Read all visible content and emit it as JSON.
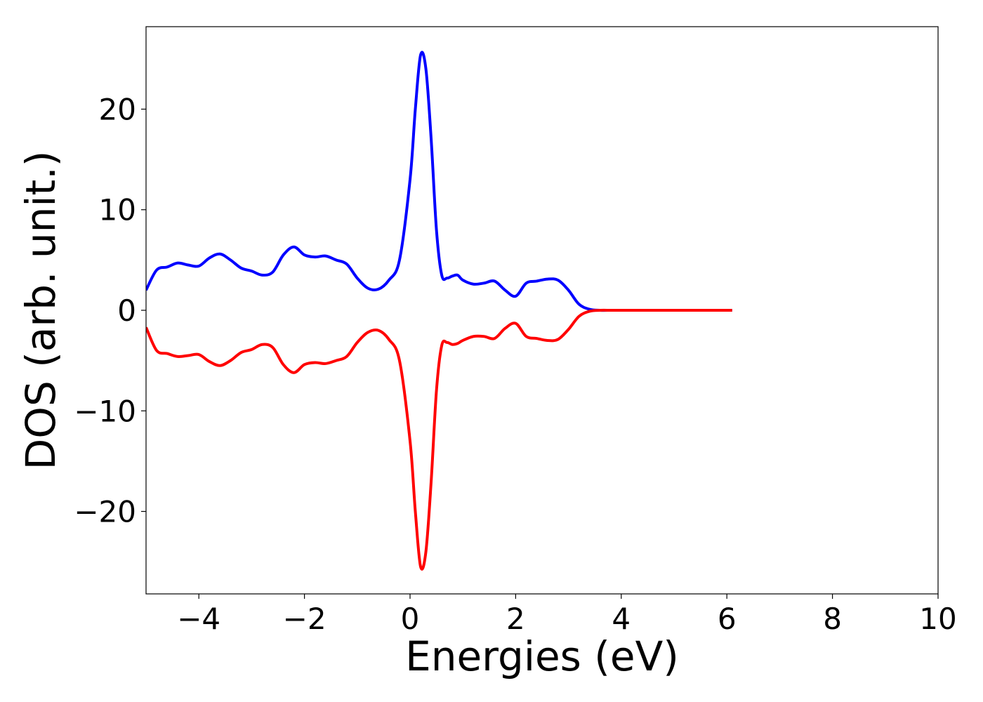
{
  "chart_data": {
    "type": "line",
    "title": "",
    "xlabel": "Energies (eV)",
    "ylabel": "DOS (arb. unit.)",
    "xlim": [
      -5,
      10
    ],
    "ylim": [
      -28.2,
      28.2
    ],
    "grid": false,
    "legend": "none",
    "xticks": [
      -4,
      -2,
      0,
      2,
      4,
      6,
      8,
      10
    ],
    "xtick_labels": [
      "−4",
      "−2",
      "0",
      "2",
      "4",
      "6",
      "8",
      "10"
    ],
    "yticks": [
      -20,
      -10,
      0,
      10,
      20
    ],
    "ytick_labels": [
      "−20",
      "−10",
      "0",
      "10",
      "20"
    ],
    "series": [
      {
        "color": "#0000ff",
        "x": [
          -5.0,
          -4.8,
          -4.6,
          -4.4,
          -4.2,
          -4.0,
          -3.8,
          -3.6,
          -3.4,
          -3.2,
          -3.0,
          -2.8,
          -2.6,
          -2.4,
          -2.2,
          -2.0,
          -1.8,
          -1.6,
          -1.4,
          -1.2,
          -1.0,
          -0.8,
          -0.6,
          -0.4,
          -0.2,
          0.0,
          0.1,
          0.2,
          0.3,
          0.4,
          0.5,
          0.6,
          0.7,
          0.8,
          0.9,
          1.0,
          1.2,
          1.4,
          1.6,
          1.8,
          2.0,
          2.2,
          2.4,
          2.6,
          2.8,
          3.0,
          3.2,
          3.4,
          3.6,
          3.8,
          4.0,
          4.2,
          4.4,
          5.0,
          5.5,
          6.1
        ],
        "y": [
          2.0,
          4.0,
          4.3,
          4.7,
          4.5,
          4.4,
          5.2,
          5.6,
          5.0,
          4.2,
          3.9,
          3.5,
          3.8,
          5.5,
          6.3,
          5.5,
          5.3,
          5.4,
          5.0,
          4.6,
          3.2,
          2.2,
          2.1,
          3.0,
          5.0,
          13.0,
          20.0,
          25.4,
          24.0,
          17.0,
          8.0,
          3.5,
          3.2,
          3.4,
          3.5,
          3.0,
          2.6,
          2.7,
          2.9,
          2.0,
          1.4,
          2.7,
          2.9,
          3.1,
          3.0,
          2.0,
          0.6,
          0.1,
          0.0,
          0.0,
          0.0,
          0.0,
          0.0,
          0.0,
          0.0,
          0.0
        ]
      },
      {
        "color": "#ff0000",
        "x": [
          -5.0,
          -4.8,
          -4.6,
          -4.4,
          -4.2,
          -4.0,
          -3.8,
          -3.6,
          -3.4,
          -3.2,
          -3.0,
          -2.8,
          -2.6,
          -2.4,
          -2.2,
          -2.0,
          -1.8,
          -1.6,
          -1.4,
          -1.2,
          -1.0,
          -0.8,
          -0.6,
          -0.4,
          -0.2,
          0.0,
          0.1,
          0.2,
          0.3,
          0.4,
          0.5,
          0.6,
          0.7,
          0.8,
          0.9,
          1.0,
          1.2,
          1.4,
          1.6,
          1.8,
          2.0,
          2.2,
          2.4,
          2.6,
          2.8,
          3.0,
          3.2,
          3.4,
          3.6,
          3.8,
          4.0,
          4.2,
          4.4,
          5.0,
          5.5,
          6.1
        ],
        "y": [
          -1.7,
          -4.0,
          -4.3,
          -4.6,
          -4.5,
          -4.4,
          -5.1,
          -5.5,
          -5.0,
          -4.2,
          -3.9,
          -3.4,
          -3.7,
          -5.4,
          -6.2,
          -5.4,
          -5.2,
          -5.3,
          -5.0,
          -4.6,
          -3.2,
          -2.2,
          -2.0,
          -2.9,
          -5.0,
          -13.0,
          -20.0,
          -25.5,
          -24.0,
          -17.0,
          -8.0,
          -3.5,
          -3.2,
          -3.4,
          -3.3,
          -3.0,
          -2.6,
          -2.6,
          -2.8,
          -1.8,
          -1.3,
          -2.6,
          -2.8,
          -3.0,
          -2.9,
          -1.9,
          -0.6,
          -0.1,
          0.0,
          0.0,
          0.0,
          0.0,
          0.0,
          0.0,
          0.0,
          0.0
        ]
      }
    ]
  }
}
